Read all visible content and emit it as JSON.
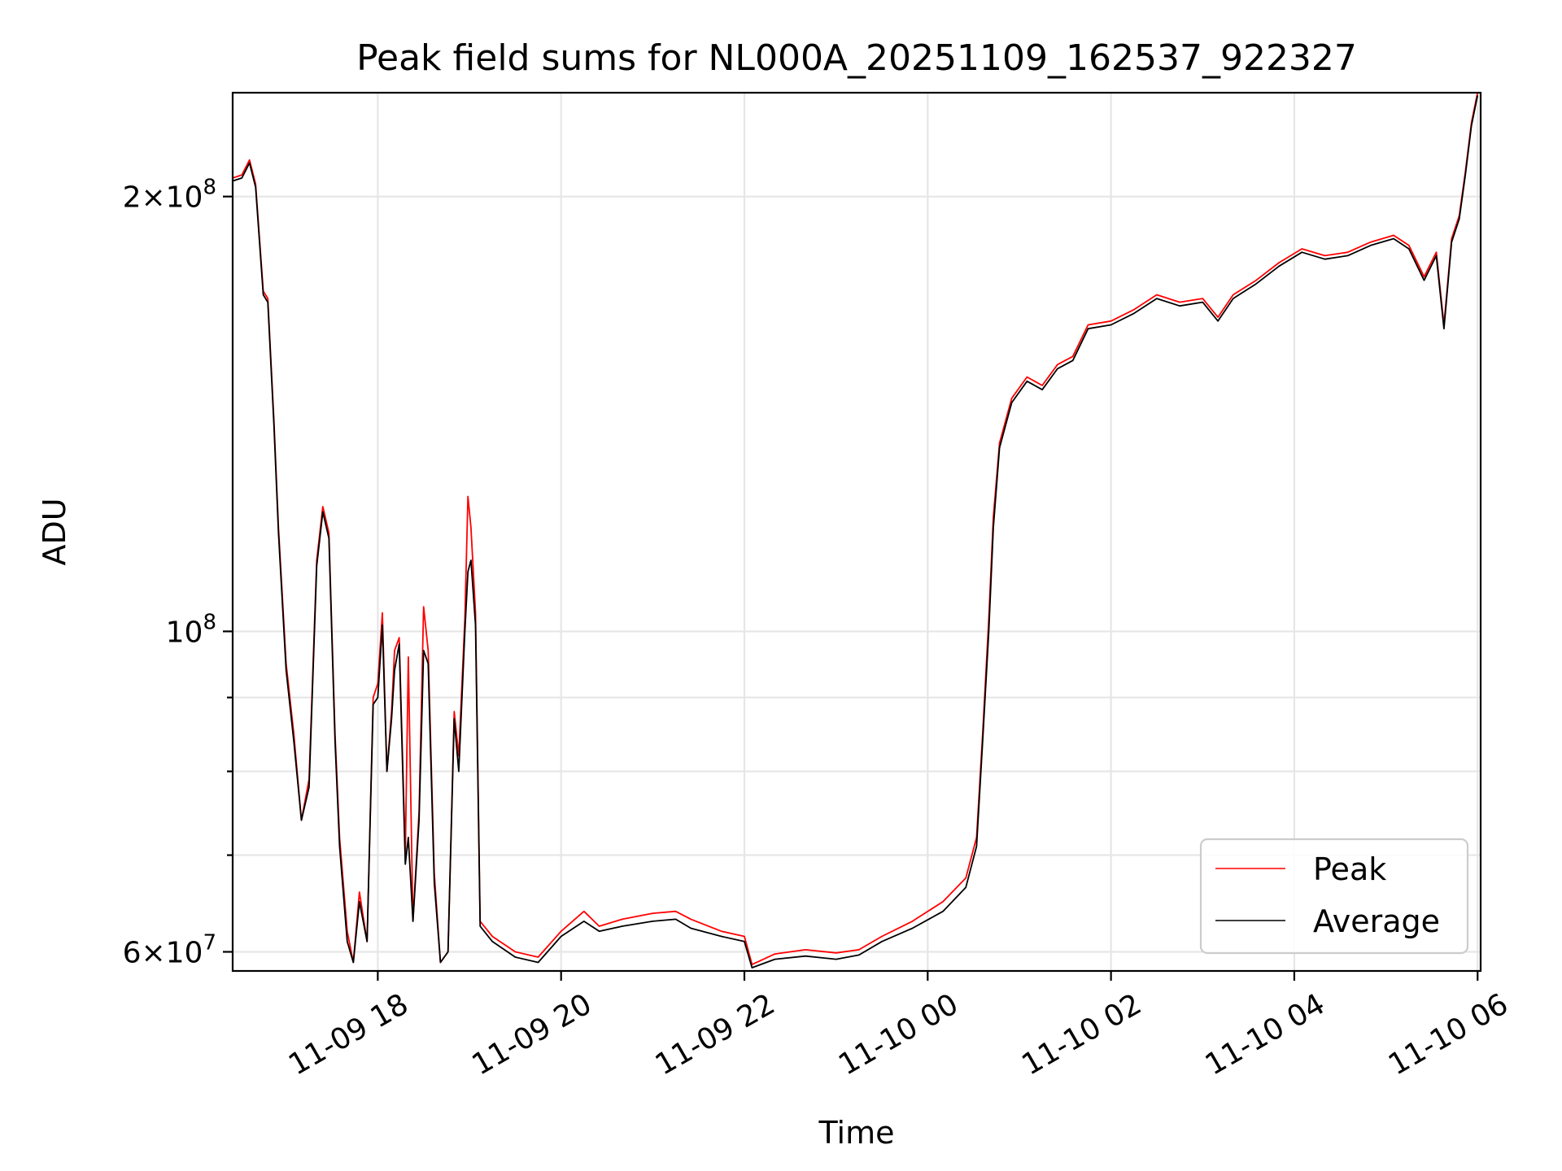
{
  "chart_data": {
    "type": "line",
    "title": "Peak field sums for NL000A_20251109_162537_922327",
    "xlabel": "Time",
    "ylabel": "ADU",
    "yscale": "log",
    "xlim": [
      "2025-11-09 16:25",
      "2025-11-10 06:02"
    ],
    "ylim": [
      58200000,
      236000000
    ],
    "x_ticks": [
      {
        "value": "2025-11-09 18:00",
        "label": "11-09 18"
      },
      {
        "value": "2025-11-09 20:00",
        "label": "11-09 20"
      },
      {
        "value": "2025-11-09 22:00",
        "label": "11-09 22"
      },
      {
        "value": "2025-11-10 00:00",
        "label": "11-10 00"
      },
      {
        "value": "2025-11-10 02:00",
        "label": "11-10 02"
      },
      {
        "value": "2025-11-10 04:00",
        "label": "11-10 04"
      },
      {
        "value": "2025-11-10 06:00",
        "label": "11-10 06"
      }
    ],
    "y_major_ticks": [
      {
        "value": 60000000,
        "base": "6×10",
        "exp": "7"
      },
      {
        "value": 100000000,
        "base": "10",
        "exp": "8"
      },
      {
        "value": 200000000,
        "base": "2×10",
        "exp": "8"
      }
    ],
    "y_minor_ticks": [
      70000000,
      80000000,
      90000000
    ],
    "grid": true,
    "legend_position": "lower-right",
    "series": [
      {
        "name": "Peak",
        "color": "#ff0000",
        "points": [
          [
            "2025-11-09 16:25",
            206000000
          ],
          [
            "2025-11-09 16:31",
            207000000
          ],
          [
            "2025-11-09 16:36",
            212000000
          ],
          [
            "2025-11-09 16:40",
            204000000
          ],
          [
            "2025-11-09 16:45",
            172000000
          ],
          [
            "2025-11-09 16:48",
            170000000
          ],
          [
            "2025-11-09 16:52",
            140000000
          ],
          [
            "2025-11-09 16:55",
            118000000
          ],
          [
            "2025-11-09 17:00",
            95000000
          ],
          [
            "2025-11-09 17:05",
            85000000
          ],
          [
            "2025-11-09 17:10",
            74000000
          ],
          [
            "2025-11-09 17:15",
            79000000
          ],
          [
            "2025-11-09 17:20",
            112000000
          ],
          [
            "2025-11-09 17:24",
            122000000
          ],
          [
            "2025-11-09 17:28",
            117000000
          ],
          [
            "2025-11-09 17:32",
            85000000
          ],
          [
            "2025-11-09 17:35",
            72000000
          ],
          [
            "2025-11-09 17:40",
            62000000
          ],
          [
            "2025-11-09 17:44",
            59000000
          ],
          [
            "2025-11-09 17:48",
            66000000
          ],
          [
            "2025-11-09 17:53",
            61000000
          ],
          [
            "2025-11-09 17:57",
            90000000
          ],
          [
            "2025-11-09 18:00",
            92000000
          ],
          [
            "2025-11-09 18:03",
            103000000
          ],
          [
            "2025-11-09 18:06",
            80000000
          ],
          [
            "2025-11-09 18:09",
            88000000
          ],
          [
            "2025-11-09 18:11",
            97000000
          ],
          [
            "2025-11-09 18:14",
            99000000
          ],
          [
            "2025-11-09 18:18",
            70000000
          ],
          [
            "2025-11-09 18:20",
            96000000
          ],
          [
            "2025-11-09 18:23",
            63000000
          ],
          [
            "2025-11-09 18:27",
            75000000
          ],
          [
            "2025-11-09 18:30",
            104000000
          ],
          [
            "2025-11-09 18:33",
            97000000
          ],
          [
            "2025-11-09 18:37",
            68000000
          ],
          [
            "2025-11-09 18:41",
            59000000
          ],
          [
            "2025-11-09 18:46",
            60000000
          ],
          [
            "2025-11-09 18:50",
            88000000
          ],
          [
            "2025-11-09 18:53",
            82000000
          ],
          [
            "2025-11-09 18:57",
            102000000
          ],
          [
            "2025-11-09 18:59",
            124000000
          ],
          [
            "2025-11-09 19:01",
            118000000
          ],
          [
            "2025-11-09 19:04",
            103000000
          ],
          [
            "2025-11-09 19:07",
            63000000
          ],
          [
            "2025-11-09 19:15",
            61500000
          ],
          [
            "2025-11-09 19:30",
            60000000
          ],
          [
            "2025-11-09 19:45",
            59500000
          ],
          [
            "2025-11-09 20:00",
            62000000
          ],
          [
            "2025-11-09 20:15",
            64000000
          ],
          [
            "2025-11-09 20:25",
            62500000
          ],
          [
            "2025-11-09 20:40",
            63200000
          ],
          [
            "2025-11-09 21:00",
            63800000
          ],
          [
            "2025-11-09 21:15",
            64000000
          ],
          [
            "2025-11-09 21:25",
            63200000
          ],
          [
            "2025-11-09 21:45",
            62000000
          ],
          [
            "2025-11-09 22:00",
            61500000
          ],
          [
            "2025-11-09 22:05",
            58800000
          ],
          [
            "2025-11-09 22:20",
            59800000
          ],
          [
            "2025-11-09 22:40",
            60200000
          ],
          [
            "2025-11-09 23:00",
            59900000
          ],
          [
            "2025-11-09 23:15",
            60200000
          ],
          [
            "2025-11-09 23:30",
            61500000
          ],
          [
            "2025-11-09 23:50",
            63000000
          ],
          [
            "2025-11-10 00:10",
            65000000
          ],
          [
            "2025-11-10 00:25",
            67500000
          ],
          [
            "2025-11-10 00:32",
            72000000
          ],
          [
            "2025-11-10 00:36",
            85000000
          ],
          [
            "2025-11-10 00:40",
            102000000
          ],
          [
            "2025-11-10 00:43",
            120000000
          ],
          [
            "2025-11-10 00:47",
            135000000
          ],
          [
            "2025-11-10 00:55",
            145000000
          ],
          [
            "2025-11-10 01:05",
            150000000
          ],
          [
            "2025-11-10 01:15",
            148000000
          ],
          [
            "2025-11-10 01:25",
            153000000
          ],
          [
            "2025-11-10 01:35",
            155000000
          ],
          [
            "2025-11-10 01:45",
            163000000
          ],
          [
            "2025-11-10 02:00",
            164000000
          ],
          [
            "2025-11-10 02:15",
            167000000
          ],
          [
            "2025-11-10 02:30",
            171000000
          ],
          [
            "2025-11-10 02:45",
            169000000
          ],
          [
            "2025-11-10 03:00",
            170000000
          ],
          [
            "2025-11-10 03:10",
            165000000
          ],
          [
            "2025-11-10 03:20",
            171000000
          ],
          [
            "2025-11-10 03:35",
            175000000
          ],
          [
            "2025-11-10 03:50",
            180000000
          ],
          [
            "2025-11-10 04:05",
            184000000
          ],
          [
            "2025-11-10 04:20",
            182000000
          ],
          [
            "2025-11-10 04:35",
            183000000
          ],
          [
            "2025-11-10 04:50",
            186000000
          ],
          [
            "2025-11-10 05:05",
            188000000
          ],
          [
            "2025-11-10 05:15",
            185000000
          ],
          [
            "2025-11-10 05:25",
            176000000
          ],
          [
            "2025-11-10 05:33",
            183000000
          ],
          [
            "2025-11-10 05:38",
            163000000
          ],
          [
            "2025-11-10 05:43",
            187000000
          ],
          [
            "2025-11-10 05:48",
            194000000
          ],
          [
            "2025-11-10 05:52",
            208000000
          ],
          [
            "2025-11-10 05:56",
            225000000
          ],
          [
            "2025-11-10 06:00",
            236000000
          ]
        ]
      },
      {
        "name": "Average",
        "color": "#000000",
        "points": [
          [
            "2025-11-09 16:25",
            205000000
          ],
          [
            "2025-11-09 16:31",
            206000000
          ],
          [
            "2025-11-09 16:36",
            211000000
          ],
          [
            "2025-11-09 16:40",
            203000000
          ],
          [
            "2025-11-09 16:45",
            171000000
          ],
          [
            "2025-11-09 16:48",
            169000000
          ],
          [
            "2025-11-09 16:52",
            139000000
          ],
          [
            "2025-11-09 16:55",
            117000000
          ],
          [
            "2025-11-09 17:00",
            94000000
          ],
          [
            "2025-11-09 17:05",
            84000000
          ],
          [
            "2025-11-09 17:10",
            74000000
          ],
          [
            "2025-11-09 17:15",
            78000000
          ],
          [
            "2025-11-09 17:20",
            111000000
          ],
          [
            "2025-11-09 17:24",
            121000000
          ],
          [
            "2025-11-09 17:28",
            116000000
          ],
          [
            "2025-11-09 17:32",
            84000000
          ],
          [
            "2025-11-09 17:35",
            71000000
          ],
          [
            "2025-11-09 17:40",
            61000000
          ],
          [
            "2025-11-09 17:44",
            59000000
          ],
          [
            "2025-11-09 17:48",
            65000000
          ],
          [
            "2025-11-09 17:53",
            61000000
          ],
          [
            "2025-11-09 17:57",
            89000000
          ],
          [
            "2025-11-09 18:00",
            90000000
          ],
          [
            "2025-11-09 18:03",
            101000000
          ],
          [
            "2025-11-09 18:06",
            80000000
          ],
          [
            "2025-11-09 18:09",
            87000000
          ],
          [
            "2025-11-09 18:11",
            94000000
          ],
          [
            "2025-11-09 18:14",
            98000000
          ],
          [
            "2025-11-09 18:18",
            69000000
          ],
          [
            "2025-11-09 18:20",
            72000000
          ],
          [
            "2025-11-09 18:23",
            63000000
          ],
          [
            "2025-11-09 18:27",
            74000000
          ],
          [
            "2025-11-09 18:30",
            97000000
          ],
          [
            "2025-11-09 18:33",
            95000000
          ],
          [
            "2025-11-09 18:37",
            67000000
          ],
          [
            "2025-11-09 18:41",
            59000000
          ],
          [
            "2025-11-09 18:46",
            60000000
          ],
          [
            "2025-11-09 18:50",
            87000000
          ],
          [
            "2025-11-09 18:53",
            80000000
          ],
          [
            "2025-11-09 18:57",
            100000000
          ],
          [
            "2025-11-09 18:59",
            110000000
          ],
          [
            "2025-11-09 19:01",
            112000000
          ],
          [
            "2025-11-09 19:04",
            101000000
          ],
          [
            "2025-11-09 19:07",
            62500000
          ],
          [
            "2025-11-09 19:15",
            61000000
          ],
          [
            "2025-11-09 19:30",
            59500000
          ],
          [
            "2025-11-09 19:45",
            59000000
          ],
          [
            "2025-11-09 20:00",
            61500000
          ],
          [
            "2025-11-09 20:15",
            63000000
          ],
          [
            "2025-11-09 20:25",
            62000000
          ],
          [
            "2025-11-09 20:40",
            62500000
          ],
          [
            "2025-11-09 21:00",
            63000000
          ],
          [
            "2025-11-09 21:15",
            63200000
          ],
          [
            "2025-11-09 21:25",
            62300000
          ],
          [
            "2025-11-09 21:45",
            61500000
          ],
          [
            "2025-11-09 22:00",
            61000000
          ],
          [
            "2025-11-09 22:05",
            58500000
          ],
          [
            "2025-11-09 22:20",
            59300000
          ],
          [
            "2025-11-09 22:40",
            59600000
          ],
          [
            "2025-11-09 23:00",
            59300000
          ],
          [
            "2025-11-09 23:15",
            59700000
          ],
          [
            "2025-11-09 23:30",
            61000000
          ],
          [
            "2025-11-09 23:50",
            62300000
          ],
          [
            "2025-11-10 00:10",
            64000000
          ],
          [
            "2025-11-10 00:25",
            66500000
          ],
          [
            "2025-11-10 00:32",
            71000000
          ],
          [
            "2025-11-10 00:36",
            84000000
          ],
          [
            "2025-11-10 00:40",
            100000000
          ],
          [
            "2025-11-10 00:43",
            118000000
          ],
          [
            "2025-11-10 00:47",
            134000000
          ],
          [
            "2025-11-10 00:55",
            144000000
          ],
          [
            "2025-11-10 01:05",
            149000000
          ],
          [
            "2025-11-10 01:15",
            147000000
          ],
          [
            "2025-11-10 01:25",
            152000000
          ],
          [
            "2025-11-10 01:35",
            154000000
          ],
          [
            "2025-11-10 01:45",
            162000000
          ],
          [
            "2025-11-10 02:00",
            163000000
          ],
          [
            "2025-11-10 02:15",
            166000000
          ],
          [
            "2025-11-10 02:30",
            170000000
          ],
          [
            "2025-11-10 02:45",
            168000000
          ],
          [
            "2025-11-10 03:00",
            169000000
          ],
          [
            "2025-11-10 03:10",
            164000000
          ],
          [
            "2025-11-10 03:20",
            170000000
          ],
          [
            "2025-11-10 03:35",
            174000000
          ],
          [
            "2025-11-10 03:50",
            179000000
          ],
          [
            "2025-11-10 04:05",
            183000000
          ],
          [
            "2025-11-10 04:20",
            181000000
          ],
          [
            "2025-11-10 04:35",
            182000000
          ],
          [
            "2025-11-10 04:50",
            185000000
          ],
          [
            "2025-11-10 05:05",
            187000000
          ],
          [
            "2025-11-10 05:15",
            184000000
          ],
          [
            "2025-11-10 05:25",
            175000000
          ],
          [
            "2025-11-10 05:33",
            182000000
          ],
          [
            "2025-11-10 05:38",
            162000000
          ],
          [
            "2025-11-10 05:43",
            186000000
          ],
          [
            "2025-11-10 05:48",
            193000000
          ],
          [
            "2025-11-10 05:52",
            207000000
          ],
          [
            "2025-11-10 05:56",
            224000000
          ],
          [
            "2025-11-10 06:00",
            235000000
          ]
        ]
      }
    ]
  }
}
